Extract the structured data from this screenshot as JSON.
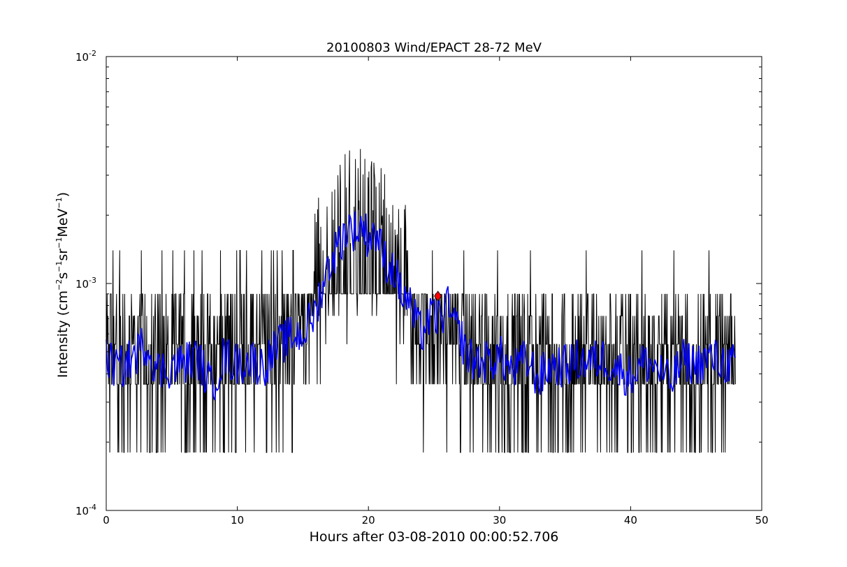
{
  "chart_data": {
    "type": "line",
    "title": "20100803 Wind/EPACT 28-72 MeV",
    "xlabel": "Hours after 03-08-2010 00:00:52.706",
    "ylabel": {
      "prefix": "Intensity (cm",
      "sup1": "−2",
      "mid1": "s",
      "sup2": "−1",
      "mid2": "sr",
      "sup3": "−1",
      "mid3": "MeV",
      "sup4": "−1",
      "suffix": ")"
    },
    "xlim": [
      0,
      50
    ],
    "ylim": [
      0.0001,
      0.01
    ],
    "yscale": "log",
    "xticks": [
      {
        "value": 0,
        "label": "0"
      },
      {
        "value": 10,
        "label": "10"
      },
      {
        "value": 20,
        "label": "20"
      },
      {
        "value": 30,
        "label": "30"
      },
      {
        "value": 40,
        "label": "40"
      },
      {
        "value": 50,
        "label": "50"
      }
    ],
    "yticks": [
      {
        "value": 0.0001,
        "base": "10",
        "exp": "-4"
      },
      {
        "value": 0.001,
        "base": "10",
        "exp": "-3"
      },
      {
        "value": 0.01,
        "base": "10",
        "exp": "-2"
      }
    ],
    "grid": false,
    "series": [
      {
        "color": "#000000",
        "style": "raw",
        "levels": [
          0.00018,
          0.00036,
          0.00054,
          0.00072,
          0.0009
        ],
        "envelope": {
          "x": [
            0,
            8,
            9,
            12,
            14,
            15,
            16,
            17,
            18,
            19,
            20,
            21,
            22,
            23,
            24,
            25,
            26,
            27,
            28,
            30,
            35,
            40,
            45,
            48
          ],
          "y": [
            0.00045,
            0.00045,
            0.00048,
            0.00052,
            0.0006,
            0.0007,
            0.00095,
            0.0013,
            0.0016,
            0.0017,
            0.0016,
            0.0014,
            0.00115,
            0.0009,
            0.00075,
            0.0007,
            0.00068,
            0.0006,
            0.00048,
            0.00045,
            0.00043,
            0.00043,
            0.00043,
            0.00043
          ]
        },
        "x_range": [
          0,
          48
        ]
      },
      {
        "color": "#0000ff",
        "style": "smoothed",
        "x": [
          0,
          1,
          2,
          3,
          4,
          5,
          6,
          7,
          8,
          9,
          10,
          11,
          12,
          13,
          14,
          15,
          16,
          16.5,
          17,
          17.5,
          18,
          18.5,
          19,
          19.5,
          20,
          20.5,
          21,
          21.5,
          22,
          22.5,
          23,
          23.5,
          24,
          24.5,
          25,
          25.5,
          26,
          26.5,
          27,
          27.5,
          28,
          29,
          30,
          31,
          32,
          33,
          34,
          35,
          36,
          37,
          38,
          39,
          40,
          41,
          42,
          43,
          44,
          45,
          46,
          47,
          48
        ],
        "y": [
          0.00046,
          0.00042,
          0.00047,
          0.00055,
          0.00041,
          0.00043,
          0.00045,
          0.00047,
          0.00035,
          0.00048,
          0.00044,
          0.00046,
          0.00043,
          0.00052,
          0.00058,
          0.0006,
          0.00075,
          0.001,
          0.0012,
          0.0014,
          0.0016,
          0.0018,
          0.0017,
          0.0018,
          0.0016,
          0.0017,
          0.0014,
          0.0012,
          0.00115,
          0.0009,
          0.00085,
          0.0007,
          0.0006,
          0.00068,
          0.00072,
          0.0007,
          0.0008,
          0.00065,
          0.0006,
          0.00048,
          0.00046,
          0.00045,
          0.00048,
          0.00041,
          0.00046,
          0.00038,
          0.00044,
          0.00043,
          0.00046,
          0.00045,
          0.00047,
          0.00042,
          0.00039,
          0.00045,
          0.00043,
          0.00036,
          0.00046,
          0.00044,
          0.00047,
          0.00045,
          0.00044
        ]
      }
    ],
    "marker": {
      "x": 25.3,
      "y": 0.00088,
      "color": "#ff0000",
      "shape": "diamond"
    }
  }
}
